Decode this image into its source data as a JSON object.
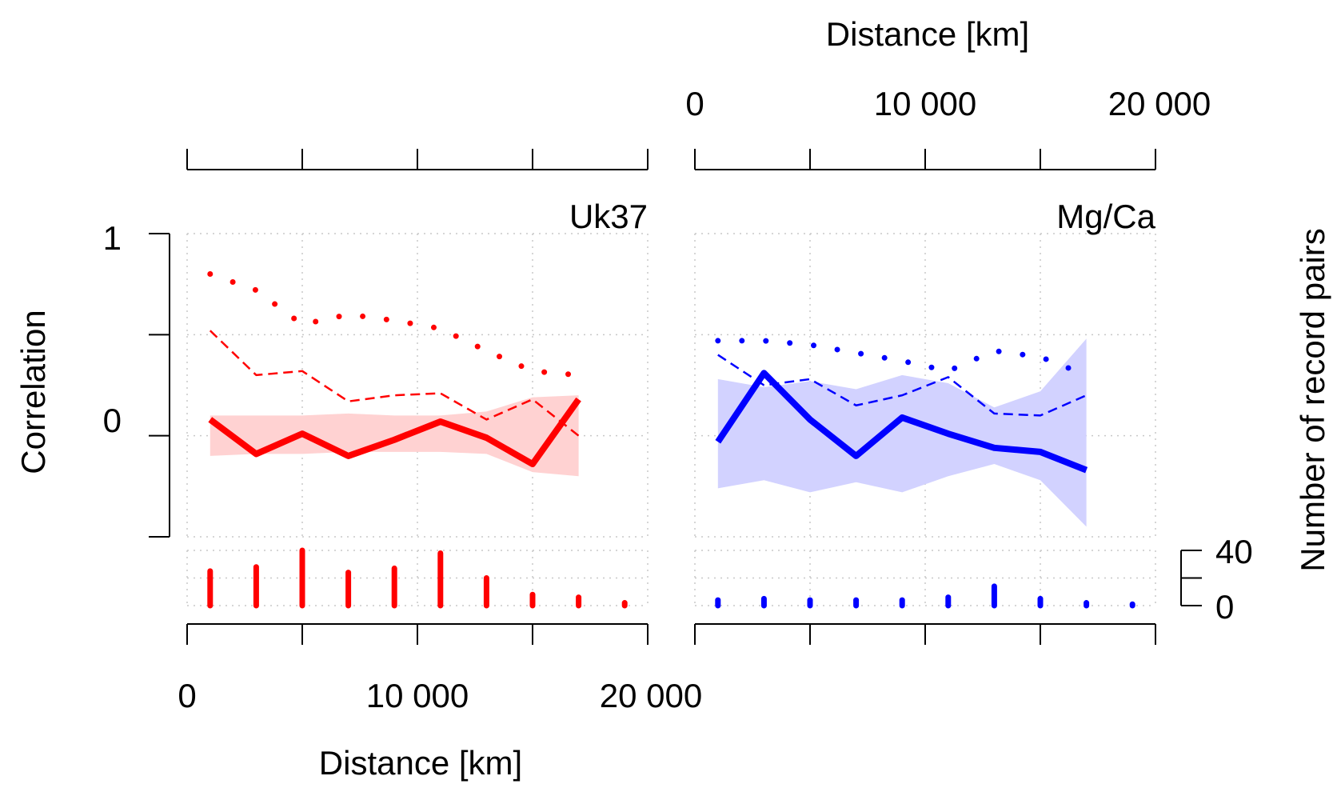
{
  "chart_data": {
    "type": "line",
    "ylabel": "Correlation",
    "xlabel_bottom": "Distance [km]",
    "xlabel_top": "Distance [km]",
    "count_label": "Number of record pairs",
    "xlim": [
      0,
      20000
    ],
    "ylim": [
      -0.5,
      1
    ],
    "count_lim": [
      0,
      40
    ],
    "x_ticks": [
      0,
      5000,
      10000,
      15000,
      20000
    ],
    "x_tick_labels": [
      "0",
      "10 000",
      "20 000"
    ],
    "y_tick_labels": [
      "0",
      "1"
    ],
    "count_tick_labels": [
      "0",
      "40"
    ],
    "grid": true,
    "panels": [
      {
        "name": "Uk37",
        "color": "#ff0000",
        "band_color": "#ffd2d2",
        "series": [
          {
            "style": "solid",
            "x": [
              1000,
              3000,
              5000,
              7000,
              9000,
              11000,
              13000,
              15000,
              17000
            ],
            "values": [
              0.08,
              -0.09,
              0.01,
              -0.1,
              -0.02,
              0.07,
              -0.01,
              -0.14,
              0.18
            ]
          },
          {
            "style": "dashed",
            "x": [
              1000,
              3000,
              5000,
              7000,
              9000,
              11000,
              13000,
              15000,
              17000
            ],
            "values": [
              0.52,
              0.3,
              0.32,
              0.17,
              0.2,
              0.21,
              0.08,
              0.18,
              0.0
            ]
          },
          {
            "style": "dotted",
            "x": [
              1000,
              3000,
              5000,
              7000,
              9000,
              11000,
              13000,
              15000,
              17000
            ],
            "values": [
              0.8,
              0.72,
              0.55,
              0.6,
              0.57,
              0.53,
              0.42,
              0.32,
              0.3
            ]
          }
        ],
        "band": {
          "x": [
            1000,
            3000,
            5000,
            7000,
            9000,
            11000,
            13000,
            15000,
            17000
          ],
          "lower": [
            -0.1,
            -0.09,
            -0.09,
            -0.08,
            -0.08,
            -0.08,
            -0.09,
            -0.18,
            -0.2
          ],
          "upper": [
            0.1,
            0.1,
            0.1,
            0.11,
            0.1,
            0.1,
            0.12,
            0.19,
            0.2
          ]
        },
        "counts": {
          "x": [
            1000,
            3000,
            5000,
            7000,
            9000,
            11000,
            13000,
            15000,
            17000,
            19000
          ],
          "values": [
            25,
            28,
            40,
            24,
            27,
            38,
            20,
            8,
            6,
            2
          ]
        }
      },
      {
        "name": "Mg/Ca",
        "color": "#0000ff",
        "band_color": "#d2d2ff",
        "series": [
          {
            "style": "solid",
            "x": [
              1000,
              3000,
              5000,
              7000,
              9000,
              11000,
              13000,
              15000,
              17000
            ],
            "values": [
              -0.03,
              0.31,
              0.08,
              -0.1,
              0.09,
              0.01,
              -0.06,
              -0.08,
              -0.17
            ]
          },
          {
            "style": "dashed",
            "x": [
              1000,
              3000,
              5000,
              7000,
              9000,
              11000,
              13000,
              15000,
              17000
            ],
            "values": [
              0.4,
              0.25,
              0.28,
              0.15,
              0.2,
              0.29,
              0.11,
              0.1,
              0.2
            ]
          },
          {
            "style": "dotted",
            "x": [
              1000,
              3000,
              5000,
              7000,
              9000,
              11000,
              13000,
              15000,
              17000
            ],
            "values": [
              0.47,
              0.47,
              0.45,
              0.41,
              0.37,
              0.32,
              0.42,
              0.39,
              0.3
            ]
          }
        ],
        "band": {
          "x": [
            1000,
            3000,
            5000,
            7000,
            9000,
            11000,
            13000,
            15000,
            17000
          ],
          "lower": [
            -0.26,
            -0.22,
            -0.28,
            -0.23,
            -0.28,
            -0.2,
            -0.14,
            -0.22,
            -0.45
          ],
          "upper": [
            0.28,
            0.24,
            0.27,
            0.23,
            0.3,
            0.26,
            0.14,
            0.22,
            0.48
          ]
        },
        "counts": {
          "x": [
            1000,
            3000,
            5000,
            7000,
            9000,
            11000,
            13000,
            15000,
            17000,
            19000
          ],
          "values": [
            4,
            5,
            4,
            4,
            4,
            6,
            14,
            5,
            2,
            1
          ]
        }
      }
    ]
  }
}
